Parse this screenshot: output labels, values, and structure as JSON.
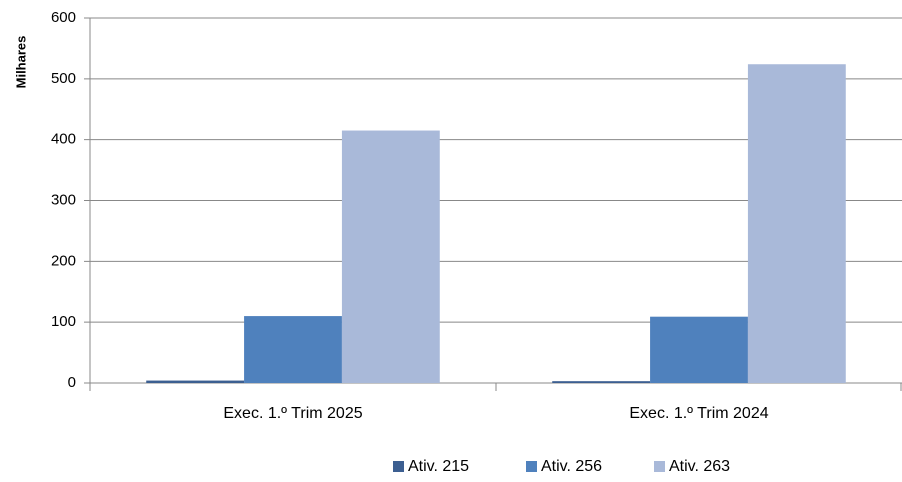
{
  "chart_data": {
    "type": "bar",
    "y_label": "Milhares",
    "categories": [
      "Exec. 1.º Trim 2025",
      "Exec. 1.º Trim 2024"
    ],
    "series": [
      {
        "name": "Ativ. 215",
        "color": "#3c5f91",
        "values": [
          4,
          3
        ]
      },
      {
        "name": "Ativ. 256",
        "color": "#4f81bd",
        "values": [
          110,
          109
        ]
      },
      {
        "name": "Ativ. 263",
        "color": "#a9b9d9",
        "values": [
          415,
          524
        ]
      }
    ],
    "ylim": [
      0,
      600
    ],
    "yticks": [
      0,
      100,
      200,
      300,
      400,
      500,
      600
    ],
    "grid": true,
    "legend": "bottom"
  }
}
